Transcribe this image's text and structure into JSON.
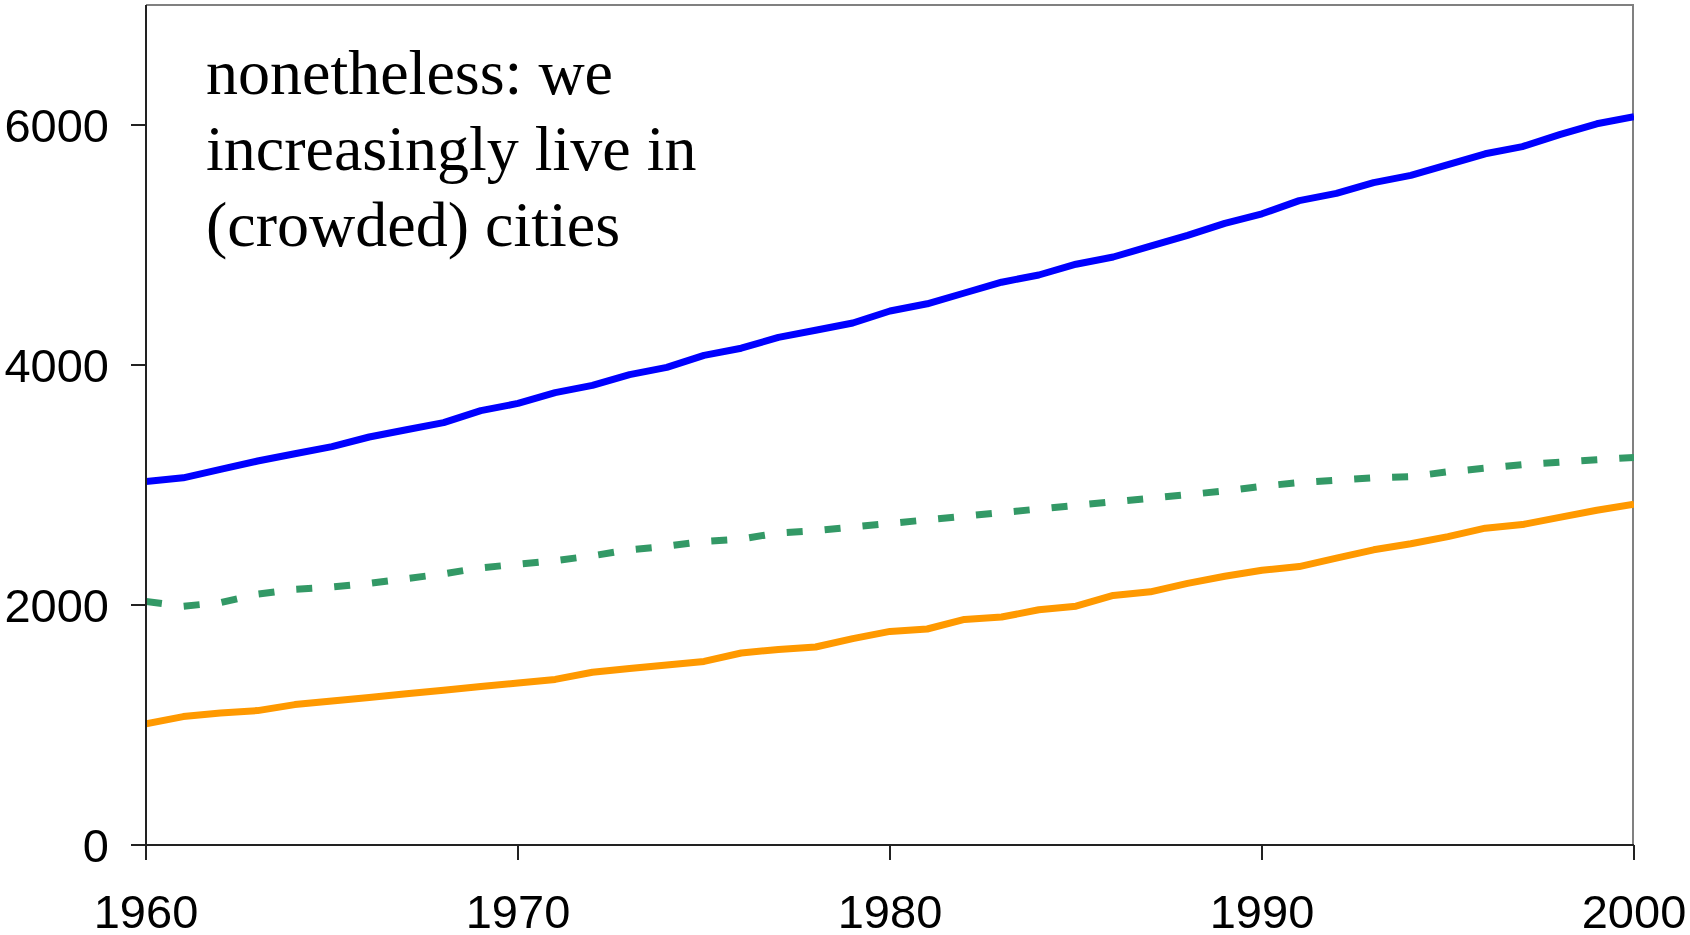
{
  "chart_data": {
    "type": "line",
    "x": [
      1960,
      1961,
      1962,
      1963,
      1964,
      1965,
      1966,
      1967,
      1968,
      1969,
      1970,
      1971,
      1972,
      1973,
      1974,
      1975,
      1976,
      1977,
      1978,
      1979,
      1980,
      1981,
      1982,
      1983,
      1984,
      1985,
      1986,
      1987,
      1988,
      1989,
      1990,
      1991,
      1992,
      1993,
      1994,
      1995,
      1996,
      1997,
      1998,
      1999,
      2000
    ],
    "series": [
      {
        "color": "#0000ff",
        "values": [
          3030,
          3060,
          3130,
          3200,
          3260,
          3320,
          3400,
          3460,
          3520,
          3620,
          3680,
          3770,
          3830,
          3920,
          3980,
          4080,
          4140,
          4230,
          4290,
          4350,
          4450,
          4510,
          4600,
          4690,
          4750,
          4840,
          4900,
          4990,
          5080,
          5180,
          5260,
          5370,
          5430,
          5520,
          5580,
          5670,
          5760,
          5820,
          5920,
          6010,
          6070
        ]
      },
      {
        "color": "#339966",
        "line_style": "dashed",
        "values": [
          2030,
          1990,
          2020,
          2090,
          2130,
          2150,
          2180,
          2220,
          2260,
          2310,
          2340,
          2370,
          2410,
          2460,
          2490,
          2530,
          2550,
          2600,
          2620,
          2650,
          2680,
          2710,
          2740,
          2770,
          2800,
          2830,
          2860,
          2890,
          2920,
          2950,
          2990,
          3020,
          3040,
          3060,
          3070,
          3110,
          3140,
          3170,
          3190,
          3210,
          3230
        ]
      },
      {
        "color": "#ff9900",
        "values": [
          1010,
          1070,
          1100,
          1120,
          1170,
          1200,
          1230,
          1260,
          1290,
          1320,
          1350,
          1380,
          1440,
          1470,
          1500,
          1530,
          1600,
          1630,
          1650,
          1720,
          1780,
          1800,
          1880,
          1900,
          1960,
          1990,
          2080,
          2110,
          2180,
          2240,
          2290,
          2320,
          2390,
          2460,
          2510,
          2570,
          2640,
          2670,
          2730,
          2790,
          2840
        ]
      }
    ],
    "xlim": [
      1960,
      2000
    ],
    "xticks": [
      1960,
      1970,
      1980,
      1990,
      2000
    ],
    "ylim": [
      0,
      7000
    ],
    "yticks": [
      0,
      2000,
      4000,
      6000
    ],
    "annotations": [
      "nonetheless: we increasingly live in (crowded) cities"
    ]
  }
}
